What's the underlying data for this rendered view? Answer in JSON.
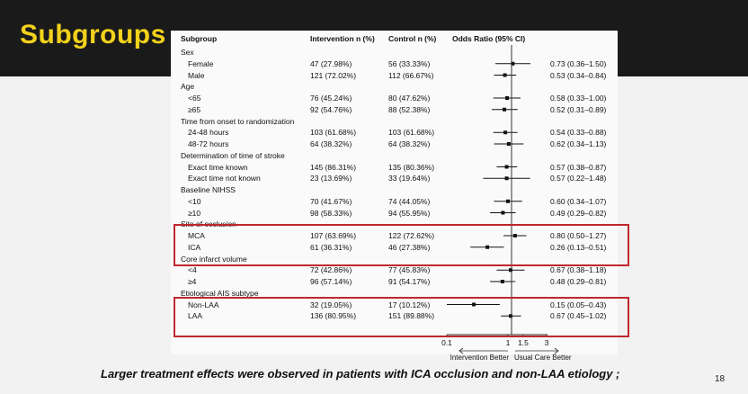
{
  "slide": {
    "title": "Subgroups",
    "footer": "Larger treatment effects were observed in patients with ICA occlusion and non-LAA etiology ;",
    "page_number": "18"
  },
  "table": {
    "headers": {
      "subgroup": "Subgroup",
      "intervention": "Intervention n (%)",
      "control": "Control n (%)",
      "or": "Odds Ratio (95% CI)"
    },
    "rows": [
      {
        "label": "Sex",
        "group": true
      },
      {
        "label": "Female",
        "intervention": "47 (27.98%)",
        "control": "56 (33.33%)",
        "ci": "0.73 (0.36–1.50)",
        "or": 0.73,
        "lo": 0.36,
        "hi": 1.5
      },
      {
        "label": "Male",
        "intervention": "121 (72.02%)",
        "control": "112 (66.67%)",
        "ci": "0.53 (0.34–0.84)",
        "or": 0.53,
        "lo": 0.34,
        "hi": 0.84
      },
      {
        "label": "Age",
        "group": true
      },
      {
        "label": "<65",
        "intervention": "76 (45.24%)",
        "control": "80 (47.62%)",
        "ci": "0.58 (0.33–1.00)",
        "or": 0.58,
        "lo": 0.33,
        "hi": 1.0
      },
      {
        "label": "≥65",
        "intervention": "92 (54.76%)",
        "control": "88 (52.38%)",
        "ci": "0.52 (0.31–0.89)",
        "or": 0.52,
        "lo": 0.31,
        "hi": 0.89
      },
      {
        "label": "Time from onset to randomization",
        "group": true
      },
      {
        "label": "24-48 hours",
        "intervention": "103 (61.68%)",
        "control": "103 (61.68%)",
        "ci": "0.54 (0.33–0.88)",
        "or": 0.54,
        "lo": 0.33,
        "hi": 0.88
      },
      {
        "label": "48-72 hours",
        "intervention": "64 (38.32%)",
        "control": "64 (38.32%)",
        "ci": "0.62 (0.34–1.13)",
        "or": 0.62,
        "lo": 0.34,
        "hi": 1.13
      },
      {
        "label": "Determination of time of stroke",
        "group": true
      },
      {
        "label": "Exact time known",
        "intervention": "145 (86.31%)",
        "control": "135 (80.36%)",
        "ci": "0.57 (0.38–0.87)",
        "or": 0.57,
        "lo": 0.38,
        "hi": 0.87
      },
      {
        "label": "Exact time not known",
        "intervention": "23 (13.69%)",
        "control": "33 (19.64%)",
        "ci": "0.57 (0.22–1.48)",
        "or": 0.57,
        "lo": 0.22,
        "hi": 1.48
      },
      {
        "label": "Baseline NIHSS",
        "group": true
      },
      {
        "label": "<10",
        "intervention": "70 (41.67%)",
        "control": "74 (44.05%)",
        "ci": "0.60 (0.34–1.07)",
        "or": 0.6,
        "lo": 0.34,
        "hi": 1.07
      },
      {
        "label": "≥10",
        "intervention": "98 (58.33%)",
        "control": "94 (55.95%)",
        "ci": "0.49 (0.29–0.82)",
        "or": 0.49,
        "lo": 0.29,
        "hi": 0.82
      },
      {
        "label": "Site of occlusion",
        "group": true
      },
      {
        "label": "MCA",
        "intervention": "107 (63.69%)",
        "control": "122 (72.62%)",
        "ci": "0.80 (0.50–1.27)",
        "or": 0.8,
        "lo": 0.5,
        "hi": 1.27
      },
      {
        "label": "ICA",
        "intervention": "61 (36.31%)",
        "control": "46 (27.38%)",
        "ci": "0.26 (0.13–0.51)",
        "or": 0.26,
        "lo": 0.13,
        "hi": 0.51
      },
      {
        "label": "Core infarct volume",
        "group": true
      },
      {
        "label": "<4",
        "intervention": "72 (42.86%)",
        "control": "77 (45.83%)",
        "ci": "0.67 (0.38–1.18)",
        "or": 0.67,
        "lo": 0.38,
        "hi": 1.18
      },
      {
        "label": "≥4",
        "intervention": "96 (57.14%)",
        "control": "91 (54.17%)",
        "ci": "0.48 (0.29–0.81)",
        "or": 0.48,
        "lo": 0.29,
        "hi": 0.81
      },
      {
        "label": "Etiological AIS subtype",
        "group": true
      },
      {
        "label": "Non-LAA",
        "intervention": "32 (19.05%)",
        "control": "17 (10.12%)",
        "ci": "0.15 (0.05–0.43)",
        "or": 0.15,
        "lo": 0.05,
        "hi": 0.43
      },
      {
        "label": "LAA",
        "intervention": "136 (80.95%)",
        "control": "151 (89.88%)",
        "ci": "0.67 (0.45–1.02)",
        "or": 0.67,
        "lo": 0.45,
        "hi": 1.02
      }
    ]
  },
  "axis": {
    "ticks": [
      "0.1",
      "1",
      "1.5",
      "3"
    ],
    "left_label": "Intervention Better",
    "right_label": "Usual Care Better"
  },
  "highlight_color": "#c0272d",
  "title_color": "#f2d21b"
}
